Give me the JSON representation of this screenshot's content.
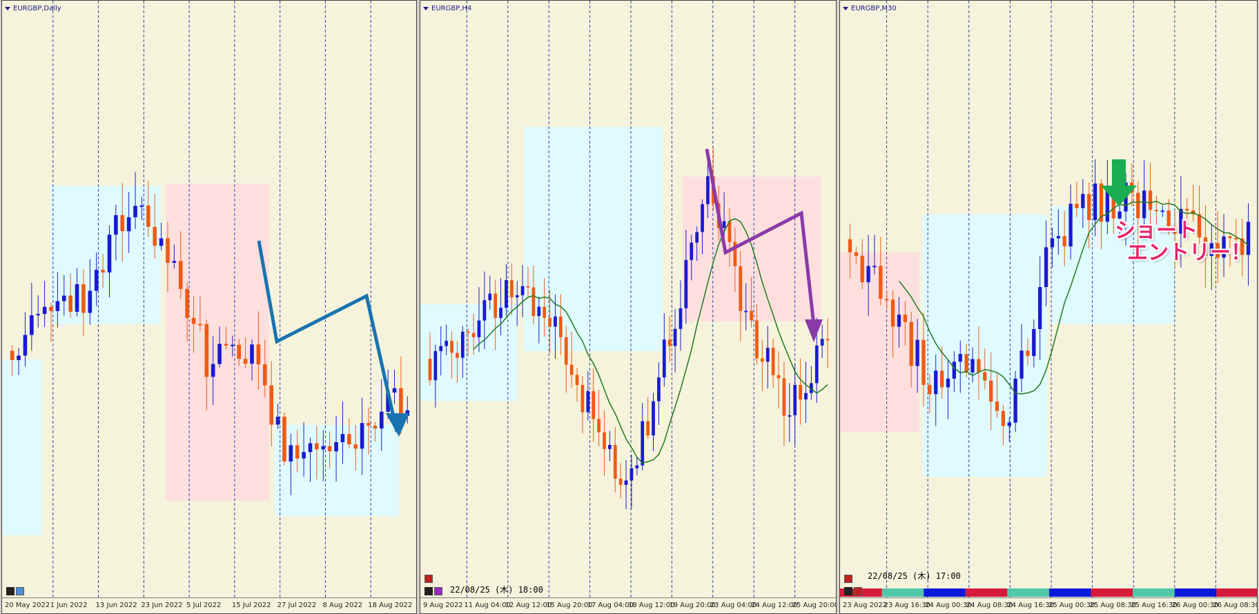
{
  "colors": {
    "background": "#f5f3dc",
    "bull": "#1a1ad0",
    "bear": "#f05a14",
    "zone_blue": "#dffbff",
    "zone_pink": "#fde0de",
    "ma": "#1e7a1e",
    "arrow_blue": "#1a73b0",
    "arrow_purple": "#8a3aa8",
    "arrow_green": "#1aad52",
    "callout": "#e8246a"
  },
  "charts": [
    {
      "title": "EURGBP,Daily",
      "timestamp": "",
      "xticks": [
        "20 May 2022",
        "1 Jun 2022",
        "13 Jun 2022",
        "23 Jun 2022",
        "5 Jul 2022",
        "15 Jul 2022",
        "27 Jul 2022",
        "8 Aug 2022",
        "18 Aug 2022"
      ],
      "annotation": {
        "type": "arrow",
        "color": "arrow_blue",
        "label": ""
      }
    },
    {
      "title": "EURGBP,H4",
      "timestamp": "22/08/25 (木) 18:00",
      "xticks": [
        "9 Aug 2022",
        "11 Aug 04:00",
        "12 Aug 12:00",
        "15 Aug 20:00",
        "17 Aug 04:00",
        "18 Aug 12:00",
        "19 Aug 20:00",
        "23 Aug 04:00",
        "24 Aug 12:00",
        "25 Aug 20:00"
      ],
      "annotation": {
        "type": "arrow",
        "color": "arrow_purple",
        "label": ""
      }
    },
    {
      "title": "EURGBP,M30",
      "timestamp": "22/08/25 (木) 17:00",
      "xticks": [
        "23 Aug 2022",
        "23 Aug 16:30",
        "24 Aug 00:30",
        "24 Aug 08:30",
        "24 Aug 16:30",
        "25 Aug 00:30",
        "25 Aug 08:30",
        "25 Aug 16:30",
        "26 Aug 00:30",
        "26 Aug 08:30"
      ],
      "annotation": {
        "type": "down-arrow",
        "color": "arrow_green",
        "label": "ショート\nエントリー！"
      },
      "session_bar": [
        "#d81a3a",
        "#4fc7a8",
        "#0a1ad8",
        "#d81a3a",
        "#4fc7a8",
        "#0a1ad8",
        "#d81a3a",
        "#4fc7a8",
        "#0a1ad8",
        "#d81a3a"
      ]
    }
  ],
  "chart_data": [
    {
      "type": "candlestick",
      "title": "EURGBP,Daily",
      "x": [
        "20 May 2022",
        "1 Jun 2022",
        "13 Jun 2022",
        "23 Jun 2022",
        "5 Jul 2022",
        "15 Jul 2022",
        "27 Jul 2022",
        "8 Aug 2022",
        "18 Aug 2022"
      ],
      "trend_seed": [
        0.5,
        0.55,
        0.62,
        0.8,
        0.7,
        0.45,
        0.5,
        0.25,
        0.3,
        0.32,
        0.4
      ],
      "count": 62
    },
    {
      "type": "candlestick",
      "title": "EURGBP,H4",
      "x": [
        "9 Aug 2022",
        "11 Aug 04:00",
        "12 Aug 12:00",
        "15 Aug 20:00",
        "17 Aug 04:00",
        "18 Aug 12:00",
        "19 Aug 20:00",
        "23 Aug 04:00",
        "24 Aug 12:00",
        "25 Aug 20:00"
      ],
      "trend_seed": [
        0.45,
        0.52,
        0.6,
        0.55,
        0.35,
        0.2,
        0.5,
        0.85,
        0.55,
        0.35,
        0.5
      ],
      "count": 74
    },
    {
      "type": "candlestick",
      "title": "EURGBP,M30",
      "x": [
        "23 Aug 2022",
        "23 Aug 16:30",
        "24 Aug 00:30",
        "24 Aug 08:30",
        "24 Aug 16:30",
        "25 Aug 00:30",
        "25 Aug 08:30",
        "25 Aug 16:30",
        "26 Aug 00:30",
        "26 Aug 08:30"
      ],
      "trend_seed": [
        0.7,
        0.55,
        0.4,
        0.45,
        0.3,
        0.7,
        0.78,
        0.8,
        0.75,
        0.7,
        0.72
      ],
      "count": 66
    }
  ]
}
